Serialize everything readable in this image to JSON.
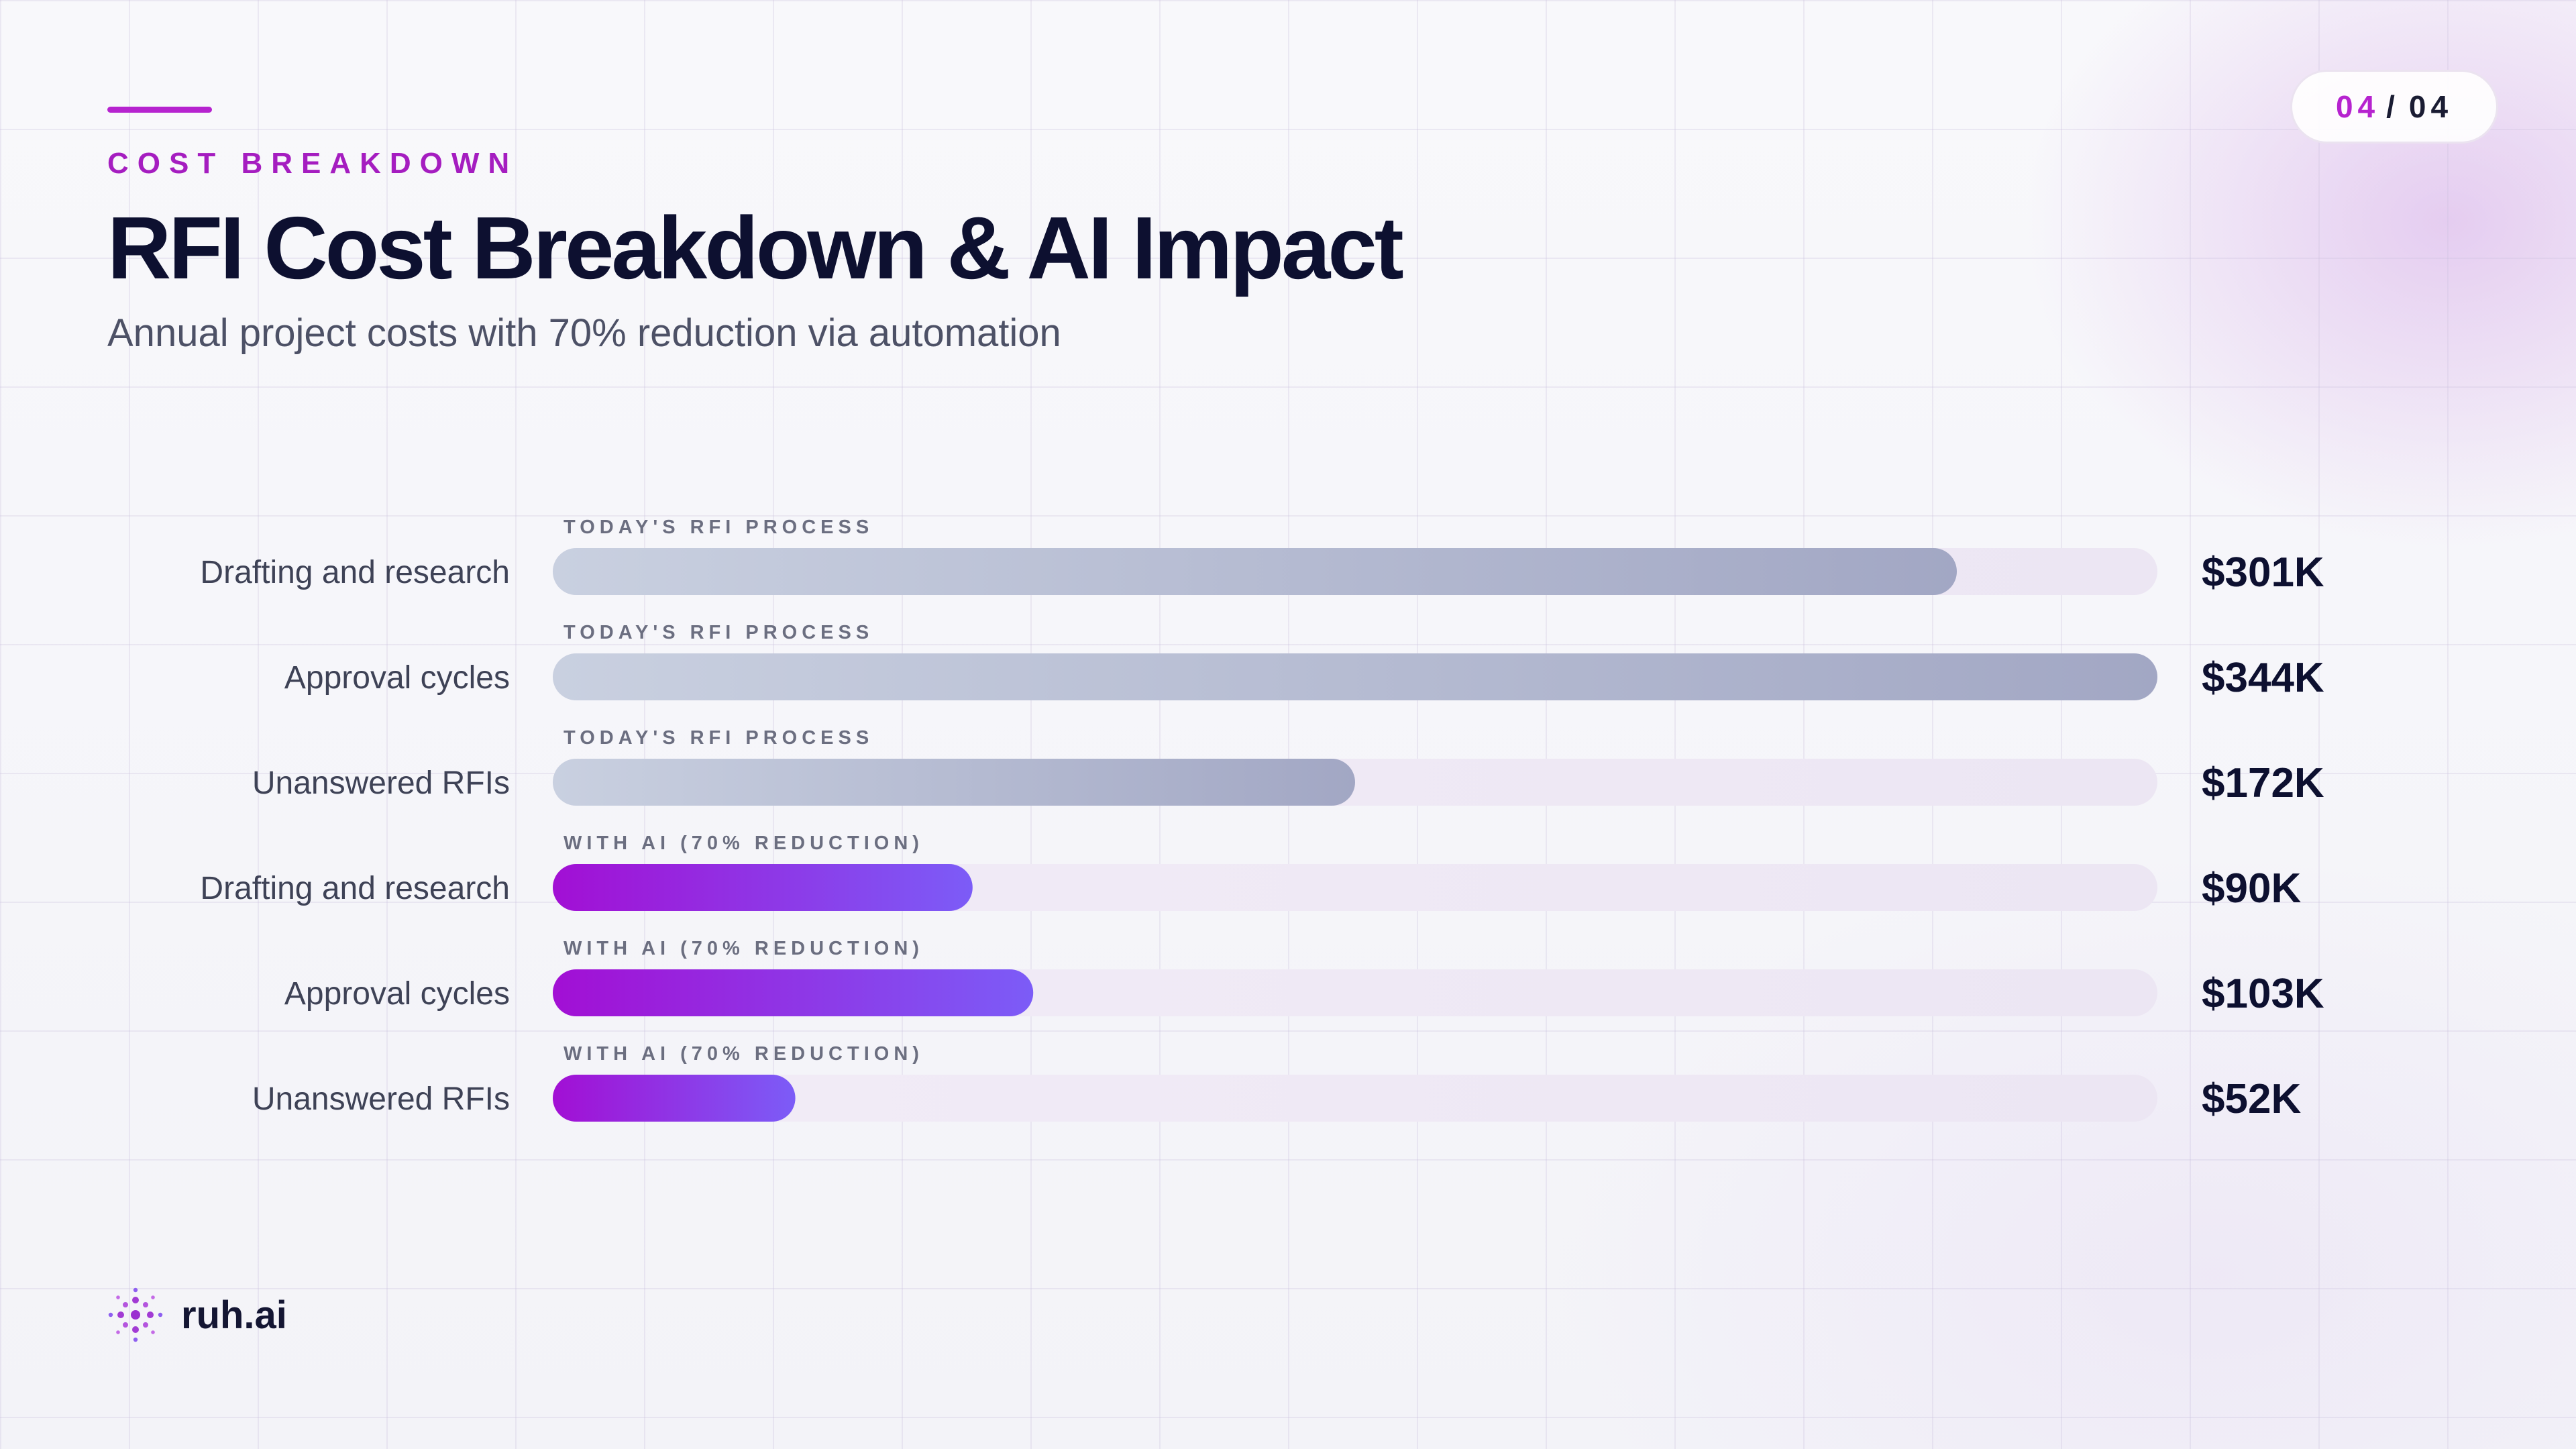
{
  "header": {
    "eyebrow": "COST BREAKDOWN",
    "title": "RFI Cost Breakdown & AI Impact",
    "subtitle": "Annual project costs with 70% reduction via automation"
  },
  "pagination": {
    "current": "04",
    "separator": "/",
    "total": "04"
  },
  "brand": {
    "name": "ruh.ai",
    "logo_icon": "dotted-circle-logo-icon"
  },
  "colors": {
    "accent": "#b623cf",
    "today_bar_start": "#c9d0e0",
    "today_bar_end": "#a2a7c4",
    "ai_bar_start": "#a20fd4",
    "ai_bar_end": "#7c5cf7",
    "track": "#efe8f5"
  },
  "chart_data": {
    "type": "bar",
    "orientation": "horizontal",
    "xlim": [
      0,
      344
    ],
    "unit": "$K",
    "grid": true,
    "legend": "none",
    "rows": [
      {
        "category": "Drafting and research",
        "group": "TODAY'S RFI PROCESS",
        "value": 301,
        "label": "$301K",
        "series": "today"
      },
      {
        "category": "Approval cycles",
        "group": "TODAY'S RFI PROCESS",
        "value": 344,
        "label": "$344K",
        "series": "today"
      },
      {
        "category": "Unanswered RFIs",
        "group": "TODAY'S RFI PROCESS",
        "value": 172,
        "label": "$172K",
        "series": "today"
      },
      {
        "category": "Drafting and research",
        "group": "WITH AI (70% REDUCTION)",
        "value": 90,
        "label": "$90K",
        "series": "ai"
      },
      {
        "category": "Approval cycles",
        "group": "WITH AI (70% REDUCTION)",
        "value": 103,
        "label": "$103K",
        "series": "ai"
      },
      {
        "category": "Unanswered RFIs",
        "group": "WITH AI (70% REDUCTION)",
        "value": 52,
        "label": "$52K",
        "series": "ai"
      }
    ]
  }
}
